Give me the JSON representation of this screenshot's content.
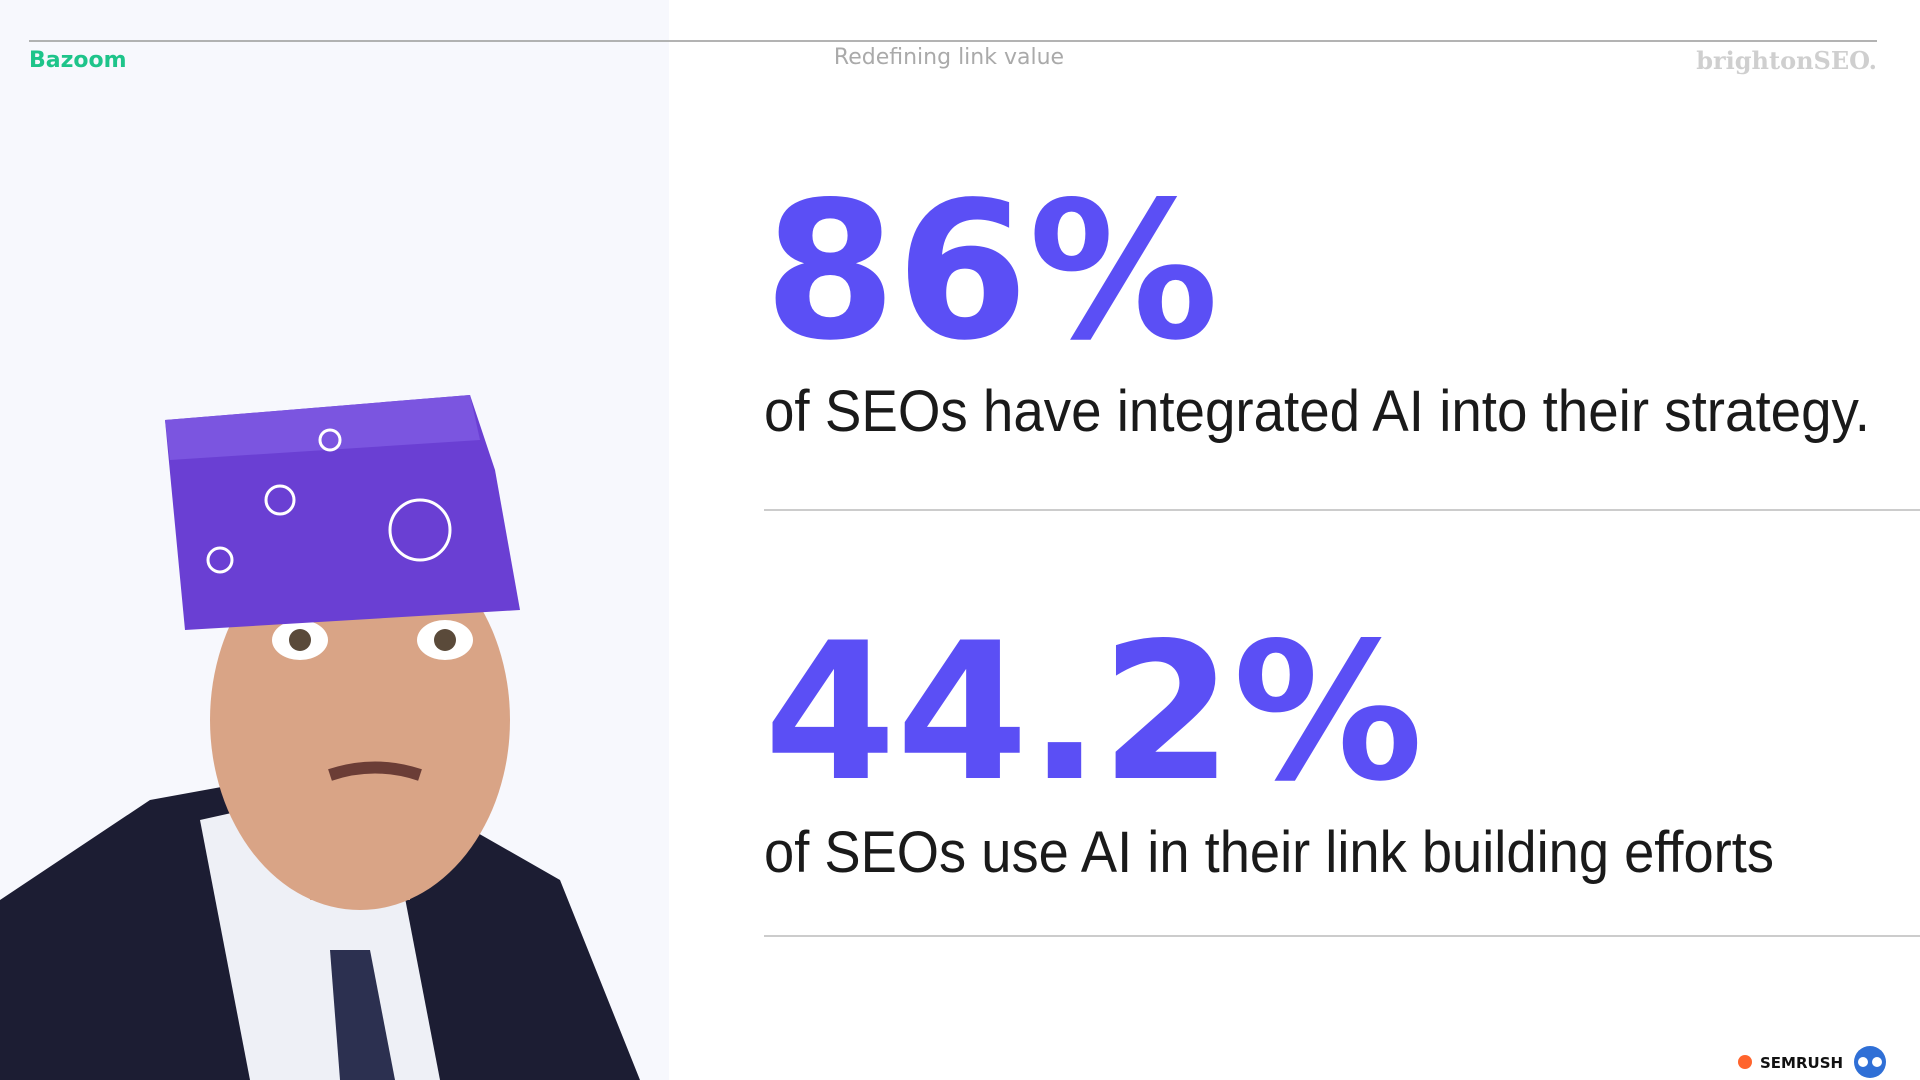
{
  "header": {
    "logo": "Bazoom",
    "title": "Redefining link value",
    "event": "brightonSEO."
  },
  "stats": [
    {
      "value": "86%",
      "caption": "of SEOs have integrated AI into their strategy."
    },
    {
      "value": "44.2%",
      "caption": "of SEOs use AI in their link building efforts"
    }
  ],
  "footer": {
    "sponsor": "SEMRUSH"
  }
}
